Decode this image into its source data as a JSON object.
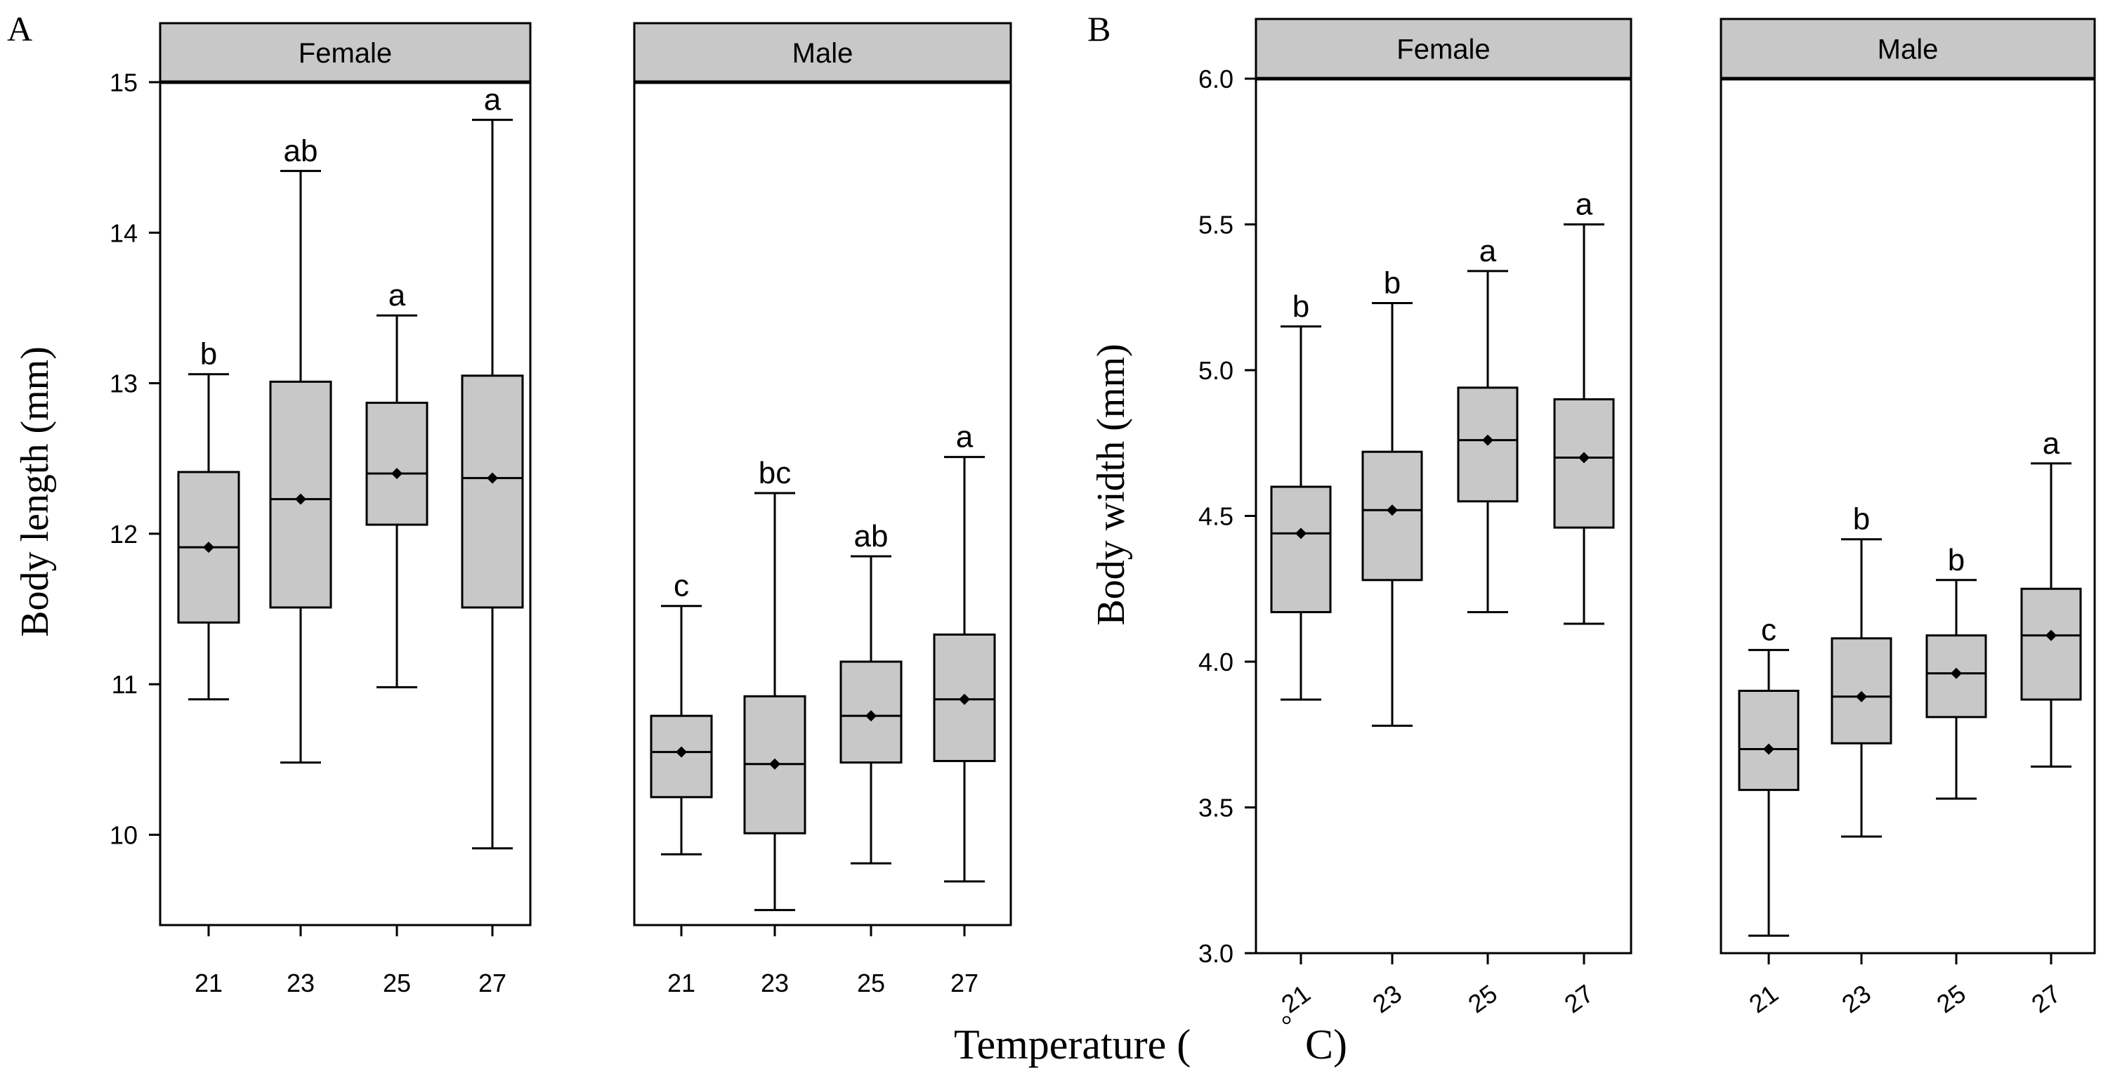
{
  "figure": {
    "x_title": "Temperature (°C)",
    "x_title_main": "Temperature (",
    "x_title_degree": "°",
    "x_title_end": "C)"
  },
  "chart_data": [
    {
      "type": "boxplot",
      "label": "A",
      "ylabel": "Body length (mm)",
      "xlabel": "Temperature (°C)",
      "ylim": [
        9.4,
        15.0
      ],
      "yticks": [
        10,
        11,
        12,
        13,
        14,
        15
      ],
      "ytick_labels": [
        "10",
        "11",
        "12",
        "13",
        "14",
        "15"
      ],
      "categories": [
        "21",
        "23",
        "25",
        "27"
      ],
      "panels": [
        {
          "name": "Female",
          "boxes": [
            {
              "x": "21",
              "min": 10.9,
              "q1": 11.41,
              "median": 11.91,
              "q3": 12.41,
              "max": 13.06,
              "mean": 11.91,
              "letter": "b"
            },
            {
              "x": "23",
              "min": 10.48,
              "q1": 11.51,
              "median": 12.23,
              "q3": 13.01,
              "max": 14.41,
              "mean": 12.23,
              "letter": "ab"
            },
            {
              "x": "25",
              "min": 10.98,
              "q1": 12.06,
              "median": 12.4,
              "q3": 12.87,
              "max": 13.45,
              "mean": 12.4,
              "letter": "a"
            },
            {
              "x": "27",
              "min": 9.91,
              "q1": 11.51,
              "median": 12.37,
              "q3": 13.05,
              "max": 14.75,
              "mean": 12.37,
              "letter": "a"
            }
          ]
        },
        {
          "name": "Male",
          "boxes": [
            {
              "x": "21",
              "min": 9.87,
              "q1": 10.25,
              "median": 10.55,
              "q3": 10.79,
              "max": 11.52,
              "mean": 10.55,
              "letter": "c"
            },
            {
              "x": "23",
              "min": 9.5,
              "q1": 10.01,
              "median": 10.47,
              "q3": 10.92,
              "max": 12.27,
              "mean": 10.47,
              "letter": "bc"
            },
            {
              "x": "25",
              "min": 9.81,
              "q1": 10.48,
              "median": 10.79,
              "q3": 11.15,
              "max": 11.85,
              "mean": 10.79,
              "letter": "ab"
            },
            {
              "x": "27",
              "min": 9.69,
              "q1": 10.49,
              "median": 10.9,
              "q3": 11.33,
              "max": 12.51,
              "mean": 10.9,
              "letter": "a"
            }
          ]
        }
      ]
    },
    {
      "type": "boxplot",
      "label": "B",
      "ylabel": "Body width (mm)",
      "xlabel": "Temperature (°C)",
      "ylim": [
        3.0,
        6.0
      ],
      "yticks": [
        3.0,
        3.5,
        4.0,
        4.5,
        5.0,
        5.5,
        6.0
      ],
      "ytick_labels": [
        "3.0",
        "3.5",
        "4.0",
        "4.5",
        "5.0",
        "5.5",
        "6.0"
      ],
      "categories": [
        "21",
        "23",
        "25",
        "27"
      ],
      "panels": [
        {
          "name": "Female",
          "boxes": [
            {
              "x": "21",
              "min": 3.87,
              "q1": 4.17,
              "median": 4.44,
              "q3": 4.6,
              "max": 5.15,
              "mean": 4.44,
              "letter": "b"
            },
            {
              "x": "23",
              "min": 3.78,
              "q1": 4.28,
              "median": 4.52,
              "q3": 4.72,
              "max": 5.23,
              "mean": 4.52,
              "letter": "b"
            },
            {
              "x": "25",
              "min": 4.17,
              "q1": 4.55,
              "median": 4.76,
              "q3": 4.94,
              "max": 5.34,
              "mean": 4.76,
              "letter": "a"
            },
            {
              "x": "27",
              "min": 4.13,
              "q1": 4.46,
              "median": 4.7,
              "q3": 4.9,
              "max": 5.5,
              "mean": 4.7,
              "letter": "a"
            }
          ]
        },
        {
          "name": "Male",
          "boxes": [
            {
              "x": "21",
              "min": 3.06,
              "q1": 3.56,
              "median": 3.7,
              "q3": 3.9,
              "max": 4.04,
              "mean": 3.7,
              "letter": "c"
            },
            {
              "x": "23",
              "min": 3.4,
              "q1": 3.72,
              "median": 3.88,
              "q3": 4.08,
              "max": 4.42,
              "mean": 3.88,
              "letter": "b"
            },
            {
              "x": "25",
              "min": 3.53,
              "q1": 3.81,
              "median": 3.96,
              "q3": 4.09,
              "max": 4.28,
              "mean": 3.96,
              "letter": "b"
            },
            {
              "x": "27",
              "min": 3.64,
              "q1": 3.87,
              "median": 4.09,
              "q3": 4.25,
              "max": 4.68,
              "mean": 4.09,
              "letter": "a"
            }
          ]
        }
      ]
    }
  ]
}
